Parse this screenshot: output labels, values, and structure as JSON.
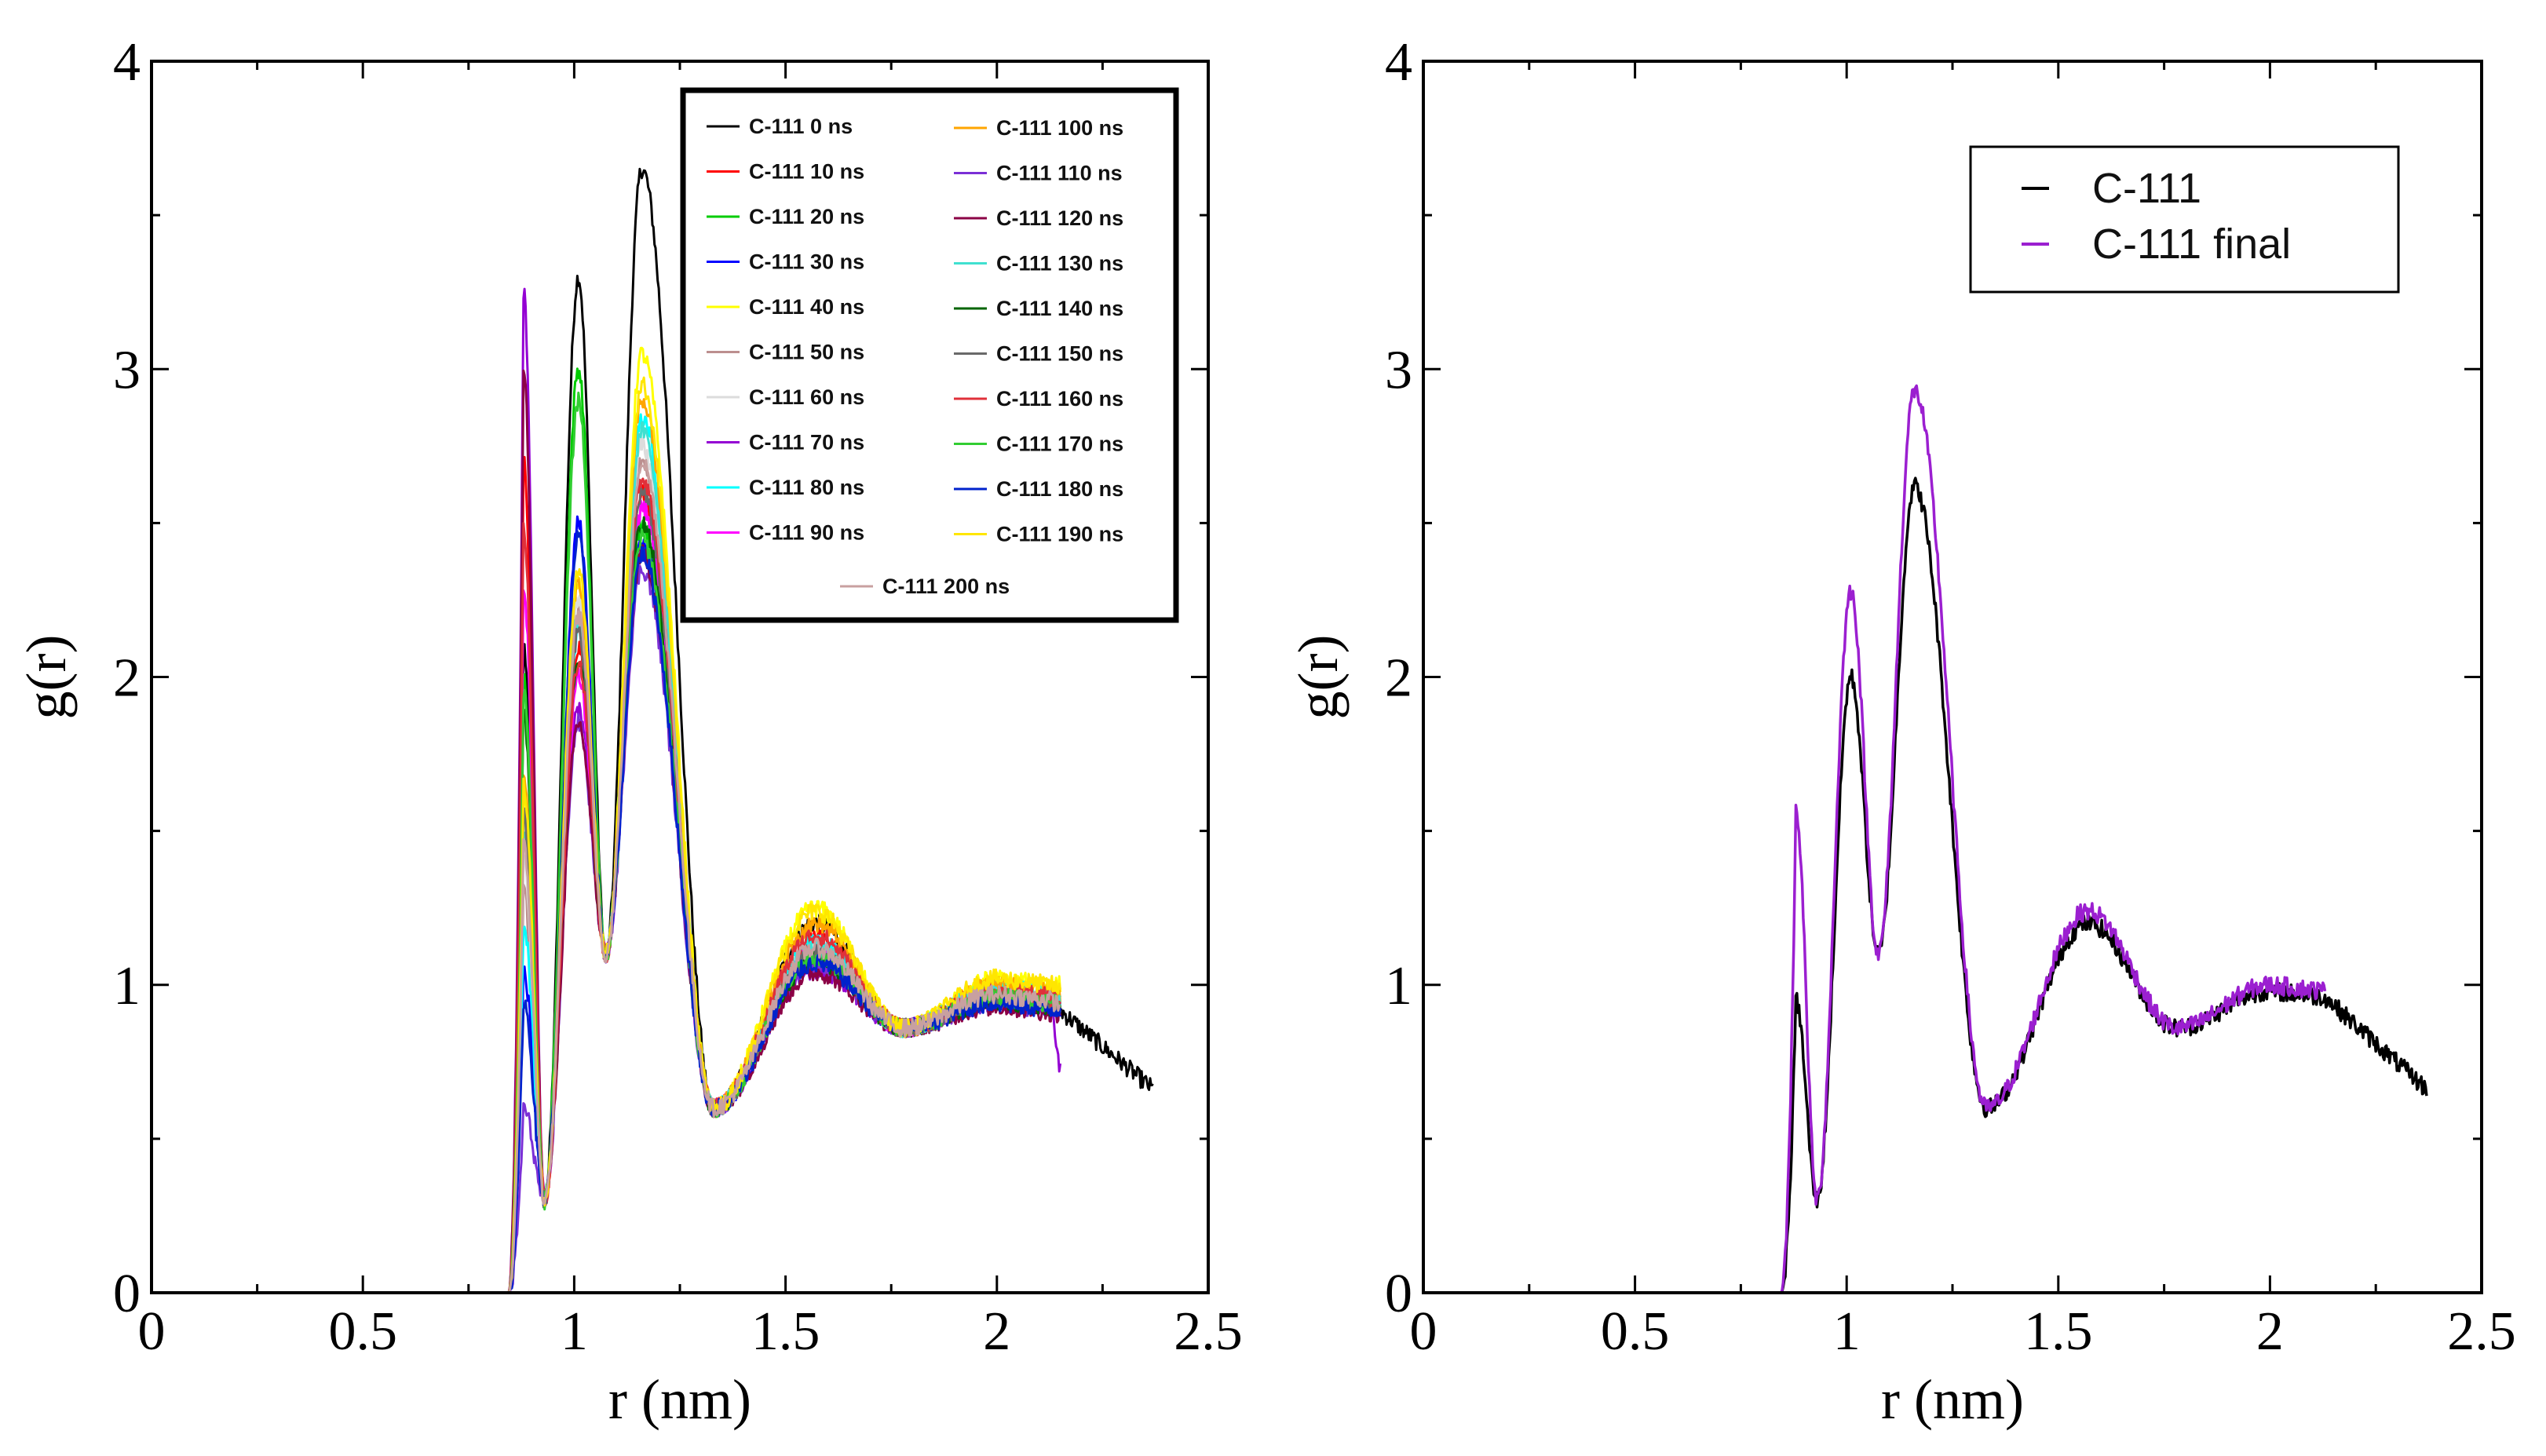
{
  "chart_data": [
    {
      "type": "line",
      "title": "",
      "xlabel": "r (nm)",
      "ylabel": "g(r)",
      "xlim": [
        0,
        2.5
      ],
      "ylim": [
        0,
        4
      ],
      "x_ticks": [
        "0",
        "0.5",
        "1",
        "1.5",
        "2",
        "2.5"
      ],
      "y_ticks": [
        "0",
        "1",
        "2",
        "3",
        "4"
      ],
      "legend_position": "top-right",
      "legend_columns": 2,
      "series": [
        {
          "name": "C-111 0 ns",
          "color": "#000000",
          "peaks": [
            0.88,
            2.1,
            1.01,
            3.3,
            1.16,
            3.65,
            1.57,
            1.2,
            2.0,
            0.96
          ],
          "end": 2.37,
          "endval": 0.66
        },
        {
          "name": "C-111 10 ns",
          "color": "#ff0000",
          "peaks": [
            0.88,
            2.7,
            1.01,
            2.1,
            1.16,
            2.6,
            1.57,
            1.15,
            2.0,
            0.98
          ],
          "end": 2.15,
          "endval": 0.9
        },
        {
          "name": "C-111 20 ns",
          "color": "#00cc00",
          "peaks": [
            0.88,
            2.0,
            1.01,
            3.0,
            1.16,
            2.5,
            1.57,
            1.1,
            2.0,
            0.97
          ],
          "end": 2.15,
          "endval": 0.95
        },
        {
          "name": "C-111 30 ns",
          "color": "#0000ff",
          "peaks": [
            0.88,
            1.05,
            1.01,
            2.5,
            1.16,
            2.45,
            1.57,
            1.08,
            2.0,
            0.95
          ],
          "end": 2.15,
          "endval": 0.92
        },
        {
          "name": "C-111 40 ns",
          "color": "#ffff00",
          "peaks": [
            0.88,
            1.6,
            1.01,
            2.3,
            1.16,
            3.05,
            1.57,
            1.25,
            2.0,
            1.02
          ],
          "end": 2.15,
          "endval": 1.0
        },
        {
          "name": "C-111 50 ns",
          "color": "#bc8f8f",
          "peaks": [
            0.88,
            1.3,
            1.01,
            2.2,
            1.16,
            2.7,
            1.57,
            1.12,
            2.0,
            0.97
          ],
          "end": 2.15,
          "endval": 0.93
        },
        {
          "name": "C-111 60 ns",
          "color": "#dcdcdc",
          "peaks": [
            0.88,
            1.4,
            1.01,
            2.25,
            1.16,
            2.75,
            1.57,
            1.13,
            2.0,
            0.98
          ],
          "end": 2.15,
          "endval": 0.94
        },
        {
          "name": "C-111 70 ns",
          "color": "#9400d3",
          "peaks": [
            0.88,
            3.25,
            1.01,
            1.9,
            1.16,
            2.4,
            1.57,
            1.05,
            2.0,
            0.95
          ],
          "end": 2.15,
          "endval": 0.72
        },
        {
          "name": "C-111 80 ns",
          "color": "#00ffff",
          "peaks": [
            0.88,
            1.2,
            1.01,
            2.15,
            1.16,
            2.85,
            1.57,
            1.14,
            2.0,
            0.99
          ],
          "end": 2.15,
          "endval": 0.95
        },
        {
          "name": "C-111 90 ns",
          "color": "#ff00ff",
          "peaks": [
            0.88,
            2.3,
            1.01,
            2.0,
            1.16,
            2.55,
            1.57,
            1.1,
            2.0,
            0.96
          ],
          "end": 2.15,
          "endval": 0.93
        },
        {
          "name": "C-111 100 ns",
          "color": "#ffa500",
          "peaks": [
            0.88,
            1.7,
            1.01,
            2.3,
            1.16,
            2.9,
            1.57,
            1.2,
            2.0,
            1.0
          ],
          "end": 2.15,
          "endval": 0.96
        },
        {
          "name": "C-111 110 ns",
          "color": "#7b2fd6",
          "peaks": [
            0.88,
            0.6,
            1.01,
            1.85,
            1.16,
            2.35,
            1.57,
            1.06,
            2.0,
            0.94
          ],
          "end": 2.15,
          "endval": 0.92
        },
        {
          "name": "C-111 120 ns",
          "color": "#8b0045",
          "peaks": [
            0.88,
            3.0,
            1.01,
            1.85,
            1.16,
            2.4,
            1.57,
            1.04,
            2.0,
            0.93
          ],
          "end": 2.15,
          "endval": 0.9
        },
        {
          "name": "C-111 130 ns",
          "color": "#40e0d0",
          "peaks": [
            0.88,
            1.5,
            1.01,
            2.2,
            1.16,
            2.8,
            1.57,
            1.12,
            2.0,
            0.97
          ],
          "end": 2.15,
          "endval": 0.94
        },
        {
          "name": "C-111 140 ns",
          "color": "#006400",
          "peaks": [
            0.88,
            1.9,
            1.01,
            2.05,
            1.16,
            2.5,
            1.57,
            1.08,
            2.0,
            0.95
          ],
          "end": 2.15,
          "endval": 0.92
        },
        {
          "name": "C-111 150 ns",
          "color": "#696969",
          "peaks": [
            0.88,
            1.55,
            1.01,
            2.15,
            1.16,
            2.6,
            1.57,
            1.1,
            2.0,
            0.96
          ],
          "end": 2.15,
          "endval": 0.93
        },
        {
          "name": "C-111 160 ns",
          "color": "#e0303a",
          "peaks": [
            0.88,
            2.5,
            1.01,
            2.05,
            1.16,
            2.65,
            1.57,
            1.16,
            2.0,
            0.98
          ],
          "end": 2.15,
          "endval": 0.94
        },
        {
          "name": "C-111 170 ns",
          "color": "#32cd32",
          "peaks": [
            0.88,
            1.95,
            1.01,
            2.9,
            1.16,
            2.45,
            1.57,
            1.09,
            2.0,
            0.96
          ],
          "end": 2.15,
          "endval": 0.95
        },
        {
          "name": "C-111 180 ns",
          "color": "#0022cc",
          "peaks": [
            0.88,
            0.95,
            1.01,
            2.45,
            1.16,
            2.4,
            1.57,
            1.07,
            2.0,
            0.94
          ],
          "end": 2.15,
          "endval": 0.92
        },
        {
          "name": "C-111 190 ns",
          "color": "#ffe600",
          "peaks": [
            0.88,
            1.65,
            1.01,
            2.35,
            1.16,
            2.95,
            1.57,
            1.24,
            2.0,
            1.02
          ],
          "end": 2.15,
          "endval": 0.98
        },
        {
          "name": "C-111 200 ns",
          "color": "#c8a0a0",
          "peaks": [
            0.88,
            1.45,
            1.01,
            2.2,
            1.16,
            2.7,
            1.57,
            1.12,
            2.0,
            0.97
          ],
          "end": 2.15,
          "endval": 0.93
        }
      ]
    },
    {
      "type": "line",
      "title": "",
      "xlabel": "r (nm)",
      "ylabel": "g(r)",
      "xlim": [
        0,
        2.5
      ],
      "ylim": [
        0,
        4
      ],
      "x_ticks": [
        "0",
        "0.5",
        "1",
        "1.5",
        "2",
        "2.5"
      ],
      "y_ticks": [
        "0",
        "1",
        "2",
        "3",
        "4"
      ],
      "legend_position": "top-right",
      "legend_columns": 1,
      "series": [
        {
          "name": "C-111",
          "color": "#000000",
          "peaks": [
            0.89,
            0.95,
            1.01,
            2.0,
            1.16,
            2.62,
            1.56,
            1.2,
            2.0,
            0.98
          ],
          "end": 2.37,
          "endval": 0.66
        },
        {
          "name": "C-111 final",
          "color": "#9b1fd0",
          "peaks": [
            0.89,
            1.57,
            1.01,
            2.28,
            1.16,
            2.93,
            1.56,
            1.24,
            2.0,
            1.0
          ],
          "end": 2.13,
          "endval": 0.78
        }
      ]
    }
  ]
}
